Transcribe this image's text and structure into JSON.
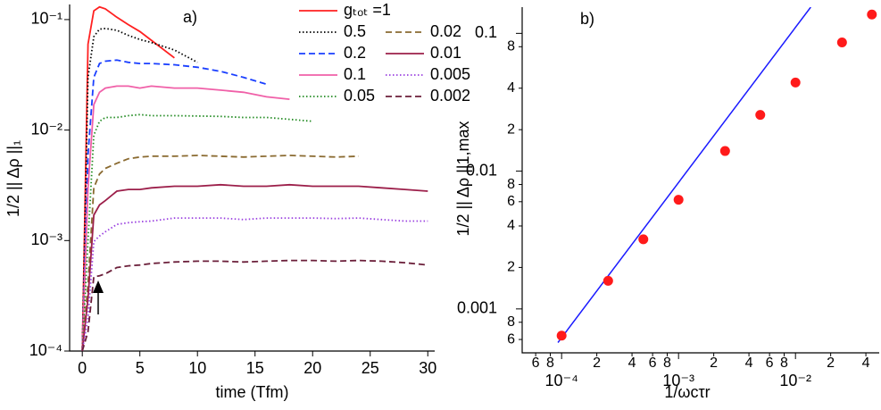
{
  "chart_data": [
    {
      "type": "line",
      "annotation": "a)",
      "xlabel": "time (Tfm)",
      "ylabel": "1/2 || Δρ ||₁",
      "xlim": [
        -1.1,
        30.6
      ],
      "ylim": [
        0.0001,
        0.137
      ],
      "yscale": "log",
      "xticks": [
        0,
        5,
        10,
        15,
        20,
        25,
        30
      ],
      "yticks": [
        {
          "value": 0.0001,
          "label": "10⁻⁴"
        },
        {
          "value": 0.001,
          "label": "10⁻³"
        },
        {
          "value": 0.01,
          "label": "10⁻²"
        },
        {
          "value": 0.1,
          "label": "10⁻¹"
        }
      ],
      "x": [
        0,
        0.5,
        1,
        1.5,
        2,
        3,
        4,
        5,
        6,
        8,
        10,
        12,
        14,
        16,
        18,
        20,
        22,
        24,
        26,
        28,
        30
      ],
      "series": [
        {
          "name": "gₜₒₜ =1",
          "color": "#ff2020",
          "dash": "solid",
          "values": [
            0.0001,
            0.06,
            0.12,
            0.13,
            0.125,
            0.105,
            0.09,
            0.078,
            0.065,
            0.045,
            null,
            null,
            null,
            null,
            null,
            null,
            null,
            null,
            null,
            null,
            null
          ]
        },
        {
          "name": "0.5",
          "color": "#000000",
          "dash": "dotted",
          "values": [
            0.0001,
            0.03,
            0.07,
            0.082,
            0.083,
            0.08,
            0.072,
            0.066,
            0.062,
            0.053,
            0.041,
            null,
            null,
            null,
            null,
            null,
            null,
            null,
            null,
            null,
            null
          ]
        },
        {
          "name": "0.2",
          "color": "#1a3fff",
          "dash": "dashed",
          "values": [
            0.0001,
            0.006,
            0.03,
            0.04,
            0.042,
            0.043,
            0.041,
            0.04,
            0.04,
            0.039,
            0.037,
            0.034,
            0.03,
            0.026,
            null,
            null,
            null,
            null,
            null,
            null,
            null
          ]
        },
        {
          "name": "0.1",
          "color": "#f060a8",
          "dash": "solid",
          "values": [
            0.0001,
            0.003,
            0.017,
            0.022,
            0.024,
            0.025,
            0.025,
            0.024,
            0.025,
            0.024,
            0.024,
            0.023,
            0.022,
            0.02,
            0.019,
            null,
            null,
            null,
            null,
            null,
            null
          ]
        },
        {
          "name": "0.05",
          "color": "#228b22",
          "dash": "dotted",
          "values": [
            0.0001,
            0.001,
            0.009,
            0.012,
            0.013,
            0.013,
            0.0135,
            0.0138,
            0.0135,
            0.0135,
            0.0134,
            0.0133,
            0.013,
            0.013,
            0.0125,
            0.012,
            null,
            null,
            null,
            null,
            null
          ]
        },
        {
          "name": "0.02",
          "color": "#8a6a30",
          "dash": "dashed",
          "values": [
            0.0001,
            0.0004,
            0.003,
            0.004,
            0.0045,
            0.005,
            0.0055,
            0.0057,
            0.0058,
            0.0058,
            0.0059,
            0.0058,
            0.0057,
            0.0058,
            0.0059,
            0.0058,
            0.0057,
            0.0058,
            null,
            null,
            null
          ]
        },
        {
          "name": "0.01",
          "color": "#9c1f4a",
          "dash": "solid",
          "values": [
            0.0001,
            0.0003,
            0.0017,
            0.0021,
            0.0023,
            0.0028,
            0.0029,
            0.0029,
            0.003,
            0.0031,
            0.0031,
            0.0032,
            0.0031,
            0.0031,
            0.0032,
            0.0031,
            0.0031,
            0.0031,
            0.003,
            0.0029,
            0.0028
          ]
        },
        {
          "name": "0.005",
          "color": "#9a40e0",
          "dash": "dotted",
          "values": [
            0.0001,
            0.0002,
            0.00098,
            0.0011,
            0.0012,
            0.0014,
            0.00145,
            0.00148,
            0.0015,
            0.0016,
            0.0016,
            0.0016,
            0.00155,
            0.0016,
            0.0016,
            0.0016,
            0.00158,
            0.0016,
            0.00155,
            0.0015,
            0.0015
          ]
        },
        {
          "name": "0.002",
          "color": "#6b1f3a",
          "dash": "dashed",
          "values": [
            0.0001,
            0.00015,
            0.00047,
            0.00048,
            0.0005,
            0.00057,
            0.00059,
            0.0006,
            0.00062,
            0.00064,
            0.00065,
            0.00065,
            0.00064,
            0.00065,
            0.00066,
            0.00066,
            0.00065,
            0.00066,
            0.00065,
            0.00063,
            0.0006
          ]
        }
      ]
    },
    {
      "type": "scatter",
      "annotation": "b)",
      "xlabel": "1/ωcτr",
      "ylabel": "1/2 || Δρ ||1,max",
      "xscale": "log",
      "yscale": "log",
      "xlim": [
        4.6e-05,
        0.052
      ],
      "ylim": [
        0.00048,
        0.155
      ],
      "xticks": [
        {
          "value": 0.0001,
          "label": "10⁻⁴"
        },
        {
          "value": 0.001,
          "label": "10⁻³"
        },
        {
          "value": 0.01,
          "label": "10⁻²"
        }
      ],
      "xminor_ticks": [
        {
          "value": 6e-05,
          "label": "6"
        },
        {
          "value": 8e-05,
          "label": "8"
        },
        {
          "value": 0.0002,
          "label": "2"
        },
        {
          "value": 0.0004,
          "label": "4"
        },
        {
          "value": 0.0006,
          "label": "6"
        },
        {
          "value": 0.0008,
          "label": "8"
        },
        {
          "value": 0.002,
          "label": "2"
        },
        {
          "value": 0.004,
          "label": "4"
        },
        {
          "value": 0.006,
          "label": "6"
        },
        {
          "value": 0.008,
          "label": "8"
        },
        {
          "value": 0.02,
          "label": "2"
        },
        {
          "value": 0.04,
          "label": "4"
        }
      ],
      "yticks": [
        0.001,
        0.01,
        0.1
      ],
      "yminor_ticks": [
        {
          "value": 0.0006,
          "label": "6"
        },
        {
          "value": 0.0008,
          "label": "8"
        },
        {
          "value": 0.002,
          "label": "2"
        },
        {
          "value": 0.004,
          "label": "4"
        },
        {
          "value": 0.006,
          "label": "6"
        },
        {
          "value": 0.008,
          "label": "8"
        },
        {
          "value": 0.02,
          "label": "2"
        },
        {
          "value": 0.04,
          "label": "4"
        },
        {
          "value": 0.08,
          "label": "8"
        }
      ],
      "points": {
        "color": "#ff1a1a",
        "x": [
          0.0001,
          0.00025,
          0.0005,
          0.001,
          0.0025,
          0.005,
          0.01,
          0.025,
          0.045
        ],
        "values": [
          0.00064,
          0.0016,
          0.0032,
          0.0062,
          0.014,
          0.0256,
          0.044,
          0.086,
          0.137
        ]
      },
      "fit_line": {
        "color": "#1a1aff",
        "x": [
          9.3e-05,
          0.0135
        ],
        "values": [
          0.00057,
          0.155
        ]
      }
    }
  ]
}
